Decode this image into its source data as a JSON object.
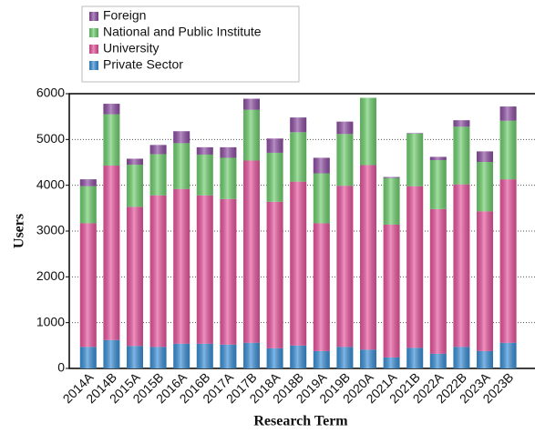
{
  "chart_data": {
    "type": "stacked_bar",
    "x_label": "Research Term",
    "y_label": "Users",
    "categories": [
      "2014A",
      "2014B",
      "2015A",
      "2015B",
      "2016A",
      "2016B",
      "2017A",
      "2017B",
      "2018A",
      "2018B",
      "2019A",
      "2019B",
      "2020A",
      "2021A",
      "2021B",
      "2022A",
      "2022B",
      "2023A",
      "2023B"
    ],
    "series": [
      {
        "name": "Private Sector",
        "color": "#3a8fd6",
        "values": [
          470,
          620,
          490,
          470,
          540,
          540,
          520,
          560,
          440,
          500,
          380,
          470,
          410,
          240,
          450,
          320,
          470,
          380,
          560
        ]
      },
      {
        "name": "University",
        "color": "#e8559e",
        "values": [
          2700,
          3810,
          3040,
          3310,
          3380,
          3240,
          3180,
          3980,
          3200,
          3580,
          2790,
          3520,
          4030,
          2900,
          3530,
          3160,
          3550,
          3050,
          3570
        ]
      },
      {
        "name": "National and Public Institute",
        "color": "#6fcf6f",
        "values": [
          810,
          1120,
          920,
          900,
          1000,
          890,
          900,
          1110,
          1070,
          1080,
          1090,
          1130,
          1470,
          1020,
          1150,
          1070,
          1260,
          1080,
          1280
        ]
      },
      {
        "name": "Foreign",
        "color": "#8e4fa3",
        "values": [
          150,
          230,
          130,
          200,
          260,
          160,
          230,
          240,
          310,
          320,
          340,
          270,
          0,
          20,
          10,
          70,
          140,
          230,
          310
        ]
      }
    ],
    "ylim": [
      0,
      6000
    ],
    "yticks": [
      0,
      1000,
      2000,
      3000,
      4000,
      5000,
      6000
    ],
    "grid": true
  }
}
